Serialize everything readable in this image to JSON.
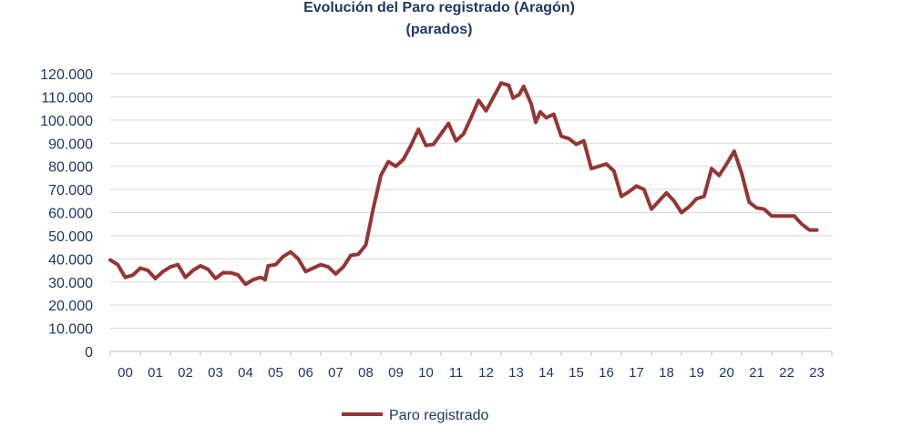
{
  "chart_data": {
    "type": "line",
    "title": "Evolución del Paro registrado (Aragón)",
    "subtitle": "(parados)",
    "xlabel": "",
    "ylabel": "",
    "ylim": [
      0,
      120000
    ],
    "yticks": [
      0,
      10000,
      20000,
      30000,
      40000,
      50000,
      60000,
      70000,
      80000,
      90000,
      100000,
      110000,
      120000
    ],
    "ytick_labels": [
      "0",
      "10.000",
      "20.000",
      "30.000",
      "40.000",
      "50.000",
      "60.000",
      "70.000",
      "80.000",
      "90.000",
      "100.000",
      "110.000",
      "120.000"
    ],
    "categories": [
      "00",
      "01",
      "02",
      "03",
      "04",
      "05",
      "06",
      "07",
      "08",
      "09",
      "10",
      "11",
      "12",
      "13",
      "14",
      "15",
      "16",
      "17",
      "18",
      "19",
      "20",
      "21",
      "22",
      "23"
    ],
    "grid": true,
    "legend_position": "bottom",
    "series": [
      {
        "name": "Paro registrado",
        "color": "#943634",
        "points": [
          [
            2000.0,
            39500
          ],
          [
            2000.25,
            37500
          ],
          [
            2000.5,
            32000
          ],
          [
            2000.75,
            33000
          ],
          [
            2001.0,
            36000
          ],
          [
            2001.25,
            35000
          ],
          [
            2001.5,
            31500
          ],
          [
            2001.75,
            34500
          ],
          [
            2002.0,
            36500
          ],
          [
            2002.25,
            37500
          ],
          [
            2002.5,
            32000
          ],
          [
            2002.75,
            35000
          ],
          [
            2003.0,
            37000
          ],
          [
            2003.25,
            35500
          ],
          [
            2003.5,
            31500
          ],
          [
            2003.75,
            34000
          ],
          [
            2004.0,
            34000
          ],
          [
            2004.25,
            33000
          ],
          [
            2004.5,
            29000
          ],
          [
            2004.75,
            31000
          ],
          [
            2005.0,
            32000
          ],
          [
            2005.15,
            31000
          ],
          [
            2005.25,
            37000
          ],
          [
            2005.5,
            37500
          ],
          [
            2005.75,
            41000
          ],
          [
            2006.0,
            43000
          ],
          [
            2006.25,
            40000
          ],
          [
            2006.5,
            34500
          ],
          [
            2006.75,
            36000
          ],
          [
            2007.0,
            37500
          ],
          [
            2007.25,
            36500
          ],
          [
            2007.5,
            33500
          ],
          [
            2007.75,
            36500
          ],
          [
            2008.0,
            41500
          ],
          [
            2008.25,
            42000
          ],
          [
            2008.5,
            46000
          ],
          [
            2008.75,
            62000
          ],
          [
            2009.0,
            76000
          ],
          [
            2009.25,
            82000
          ],
          [
            2009.5,
            80000
          ],
          [
            2009.75,
            83000
          ],
          [
            2010.0,
            89000
          ],
          [
            2010.25,
            96000
          ],
          [
            2010.5,
            89000
          ],
          [
            2010.75,
            89500
          ],
          [
            2011.0,
            94000
          ],
          [
            2011.25,
            98500
          ],
          [
            2011.5,
            91000
          ],
          [
            2011.75,
            94000
          ],
          [
            2012.0,
            101000
          ],
          [
            2012.25,
            108500
          ],
          [
            2012.5,
            104000
          ],
          [
            2012.75,
            110000
          ],
          [
            2013.0,
            116000
          ],
          [
            2013.25,
            115000
          ],
          [
            2013.4,
            109500
          ],
          [
            2013.6,
            111000
          ],
          [
            2013.75,
            114500
          ],
          [
            2014.0,
            107000
          ],
          [
            2014.15,
            99000
          ],
          [
            2014.3,
            103500
          ],
          [
            2014.5,
            101000
          ],
          [
            2014.75,
            102500
          ],
          [
            2015.0,
            93000
          ],
          [
            2015.25,
            92000
          ],
          [
            2015.5,
            89500
          ],
          [
            2015.75,
            91000
          ],
          [
            2016.0,
            79000
          ],
          [
            2016.25,
            80000
          ],
          [
            2016.5,
            81000
          ],
          [
            2016.75,
            78000
          ],
          [
            2017.0,
            67000
          ],
          [
            2017.25,
            69000
          ],
          [
            2017.5,
            71500
          ],
          [
            2017.75,
            70000
          ],
          [
            2018.0,
            61500
          ],
          [
            2018.25,
            65000
          ],
          [
            2018.5,
            68500
          ],
          [
            2018.75,
            65000
          ],
          [
            2019.0,
            60000
          ],
          [
            2019.25,
            62500
          ],
          [
            2019.5,
            66000
          ],
          [
            2019.75,
            67000
          ],
          [
            2020.0,
            79000
          ],
          [
            2020.25,
            76000
          ],
          [
            2020.5,
            81000
          ],
          [
            2020.75,
            86500
          ],
          [
            2021.0,
            77000
          ],
          [
            2021.25,
            64500
          ],
          [
            2021.5,
            62000
          ],
          [
            2021.75,
            61500
          ],
          [
            2022.0,
            58500
          ],
          [
            2022.25,
            58500
          ],
          [
            2022.5,
            58500
          ],
          [
            2022.75,
            58500
          ],
          [
            2023.0,
            55000
          ],
          [
            2023.25,
            52500
          ],
          [
            2023.5,
            52500
          ]
        ]
      }
    ]
  }
}
